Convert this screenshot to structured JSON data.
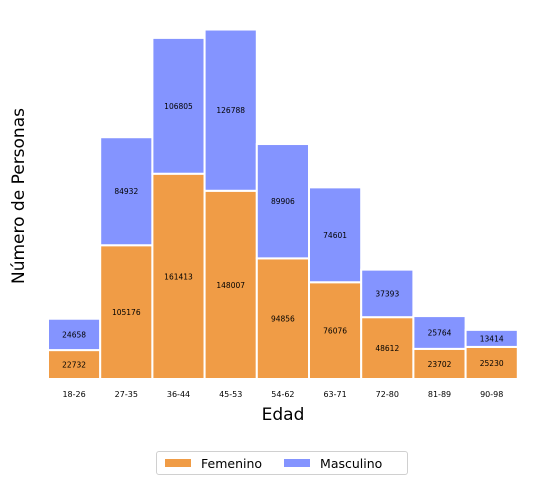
{
  "chart_data": {
    "type": "bar",
    "stacked": true,
    "xlabel": "Edad",
    "ylabel": "Número de Personas",
    "categories": [
      "18-26",
      "27-35",
      "36-44",
      "45-53",
      "54-62",
      "63-71",
      "72-80",
      "81-89",
      "90-98"
    ],
    "series": [
      {
        "name": "Femenino",
        "color": "#f09c46",
        "values": [
          22732,
          105176,
          161413,
          148007,
          94856,
          76076,
          48612,
          23702,
          25230
        ]
      },
      {
        "name": "Masculino",
        "color": "#8494ff",
        "values": [
          24658,
          84932,
          106805,
          126788,
          89906,
          74601,
          37393,
          25764,
          13414
        ]
      }
    ],
    "ylim": [
      0,
      276000
    ],
    "grid": false,
    "legend_position": "bottom-center"
  }
}
